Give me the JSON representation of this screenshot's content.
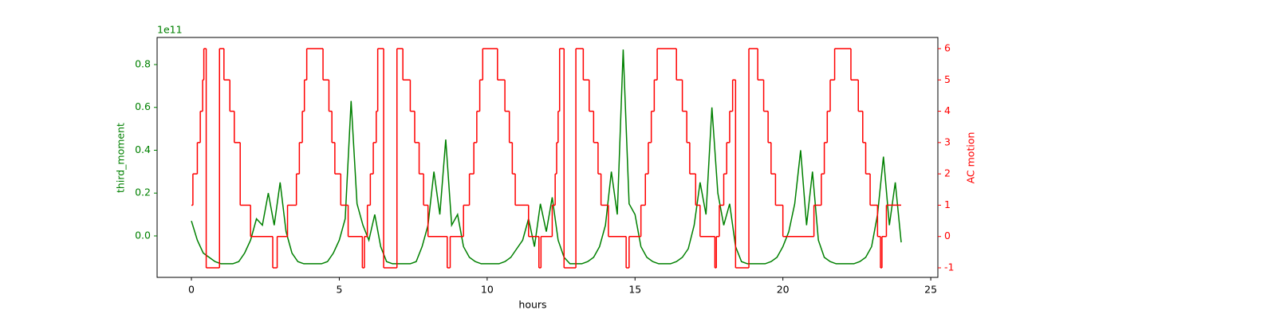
{
  "chart_data": {
    "type": "line",
    "xlabel": "hours",
    "ylabel": "third_moment",
    "y2label": "AC motion",
    "y_offset_text": "1e11",
    "xlim": [
      -1.16,
      25.24
    ],
    "xticks": [
      0,
      5,
      10,
      15,
      20,
      25
    ],
    "ylim": [
      -0.1935,
      0.9265
    ],
    "yticks": [
      {
        "value": 0,
        "label": "0.0"
      },
      0.2,
      0.4,
      0.6,
      0.8
    ],
    "y2lim": [
      -1.305,
      6.356
    ],
    "y2ticks": [
      -1,
      0,
      1,
      2,
      3,
      4,
      5,
      6
    ],
    "y_color": "#008000",
    "y2_color": "#ff0000",
    "series": [
      {
        "color": "#008000",
        "x": [
          0,
          0.2,
          0.4,
          0.6,
          0.8,
          1,
          1.2,
          1.4,
          1.6,
          1.8,
          2,
          2.2,
          2.4,
          2.6,
          2.8,
          3,
          3.2,
          3.4,
          3.6,
          3.8,
          4,
          4.2,
          4.4,
          4.6,
          4.8,
          5,
          5.2,
          5.4,
          5.6,
          5.8,
          6,
          6.2,
          6.4,
          6.6,
          6.8,
          7,
          7.2,
          7.4,
          7.6,
          7.8,
          8,
          8.2,
          8.4,
          8.6,
          8.8,
          9,
          9.2,
          9.4,
          9.6,
          9.8,
          10,
          10.2,
          10.4,
          10.6,
          10.8,
          11,
          11.2,
          11.4,
          11.6,
          11.8,
          12,
          12.2,
          12.4,
          12.6,
          12.8,
          13,
          13.2,
          13.4,
          13.6,
          13.8,
          14,
          14.2,
          14.4,
          14.6,
          14.8,
          15,
          15.2,
          15.4,
          15.6,
          15.8,
          16,
          16.2,
          16.4,
          16.6,
          16.8,
          17,
          17.2,
          17.4,
          17.6,
          17.8,
          18,
          18.2,
          18.4,
          18.6,
          18.8,
          19,
          19.2,
          19.4,
          19.6,
          19.8,
          20,
          20.2,
          20.4,
          20.6,
          20.8,
          21,
          21.2,
          21.4,
          21.6,
          21.8,
          22,
          22.2,
          22.4,
          22.6,
          22.8,
          23,
          23.2,
          23.4,
          23.6,
          23.8,
          24
        ],
        "values": [
          0.07,
          -0.02,
          -0.08,
          -0.1,
          -0.12,
          -0.13,
          -0.13,
          -0.13,
          -0.12,
          -0.08,
          -0.02,
          0.08,
          0.05,
          0.2,
          0.05,
          0.25,
          0.02,
          -0.08,
          -0.12,
          -0.13,
          -0.13,
          -0.13,
          -0.13,
          -0.12,
          -0.08,
          -0.02,
          0.08,
          0.63,
          0.15,
          0.05,
          -0.02,
          0.1,
          -0.05,
          -0.12,
          -0.13,
          -0.13,
          -0.13,
          -0.13,
          -0.12,
          -0.05,
          0.05,
          0.3,
          0.1,
          0.45,
          0.05,
          0.1,
          -0.05,
          -0.1,
          -0.12,
          -0.13,
          -0.13,
          -0.13,
          -0.13,
          -0.12,
          -0.1,
          -0.06,
          -0.02,
          0.08,
          -0.05,
          0.15,
          0.02,
          0.18,
          -0.02,
          -0.1,
          -0.13,
          -0.13,
          -0.13,
          -0.12,
          -0.1,
          -0.05,
          0.05,
          0.3,
          0.1,
          0.87,
          0.15,
          0.1,
          -0.05,
          -0.1,
          -0.12,
          -0.13,
          -0.13,
          -0.13,
          -0.12,
          -0.1,
          -0.06,
          0.05,
          0.25,
          0.1,
          0.6,
          0.2,
          0.05,
          0.15,
          -0.05,
          -0.12,
          -0.13,
          -0.13,
          -0.13,
          -0.13,
          -0.12,
          -0.1,
          -0.05,
          0.02,
          0.15,
          0.4,
          0.05,
          0.3,
          -0.02,
          -0.1,
          -0.12,
          -0.13,
          -0.13,
          -0.13,
          -0.13,
          -0.12,
          -0.1,
          -0.05,
          0.1,
          0.37,
          0.05,
          0.25,
          -0.03
        ]
      },
      {
        "color": "#ff0000",
        "axis": "y2",
        "step": "post",
        "x": [
          0,
          0.05,
          0.2,
          0.3,
          0.38,
          0.42,
          0.5,
          0.95,
          1.1,
          1.3,
          1.45,
          1.65,
          2,
          2.75,
          2.9,
          3.25,
          3.55,
          3.65,
          3.75,
          3.82,
          3.9,
          4.45,
          4.65,
          4.75,
          4.85,
          5.05,
          5.3,
          5.78,
          5.85,
          5.95,
          6.05,
          6.15,
          6.25,
          6.3,
          6.5,
          6.95,
          7.15,
          7.4,
          7.55,
          7.7,
          7.85,
          8,
          8.65,
          8.75,
          9.2,
          9.4,
          9.55,
          9.65,
          9.75,
          9.85,
          10.35,
          10.6,
          10.75,
          10.85,
          10.95,
          11.4,
          11.75,
          11.82,
          12.2,
          12.3,
          12.35,
          12.4,
          12.45,
          12.6,
          13,
          13.25,
          13.45,
          13.6,
          13.75,
          13.85,
          14.1,
          14.7,
          14.8,
          15.2,
          15.35,
          15.45,
          15.55,
          15.65,
          15.75,
          16.4,
          16.6,
          16.75,
          16.85,
          17.05,
          17.2,
          17.7,
          17.75,
          17.85,
          18,
          18.1,
          18.2,
          18.3,
          18.4,
          18.85,
          19.15,
          19.35,
          19.5,
          19.6,
          19.75,
          20,
          21.05,
          21.3,
          21.4,
          21.5,
          21.6,
          21.75,
          22.3,
          22.55,
          22.7,
          22.8,
          22.95,
          23.2,
          23.3,
          23.35,
          23.5,
          24
        ],
        "values": [
          1,
          2,
          3,
          4,
          5,
          6,
          -1,
          6,
          5,
          4,
          3,
          1,
          0,
          -1,
          0,
          1,
          2,
          3,
          4,
          5,
          6,
          5,
          4,
          3,
          2,
          1,
          0,
          -1,
          0,
          1,
          2,
          3,
          4,
          6,
          -1,
          6,
          5,
          4,
          3,
          2,
          1,
          0,
          -1,
          0,
          1,
          2,
          3,
          4,
          5,
          6,
          5,
          4,
          3,
          2,
          1,
          0,
          -1,
          0,
          1,
          2,
          3,
          4,
          6,
          -1,
          6,
          5,
          4,
          3,
          2,
          1,
          0,
          -1,
          0,
          1,
          2,
          3,
          4,
          5,
          6,
          5,
          4,
          3,
          2,
          1,
          0,
          -1,
          0,
          1,
          2,
          3,
          4,
          5,
          -1,
          6,
          5,
          4,
          3,
          2,
          1,
          0,
          1,
          2,
          3,
          4,
          5,
          6,
          5,
          4,
          3,
          2,
          1,
          0,
          -1,
          0,
          1,
          1
        ]
      }
    ]
  }
}
